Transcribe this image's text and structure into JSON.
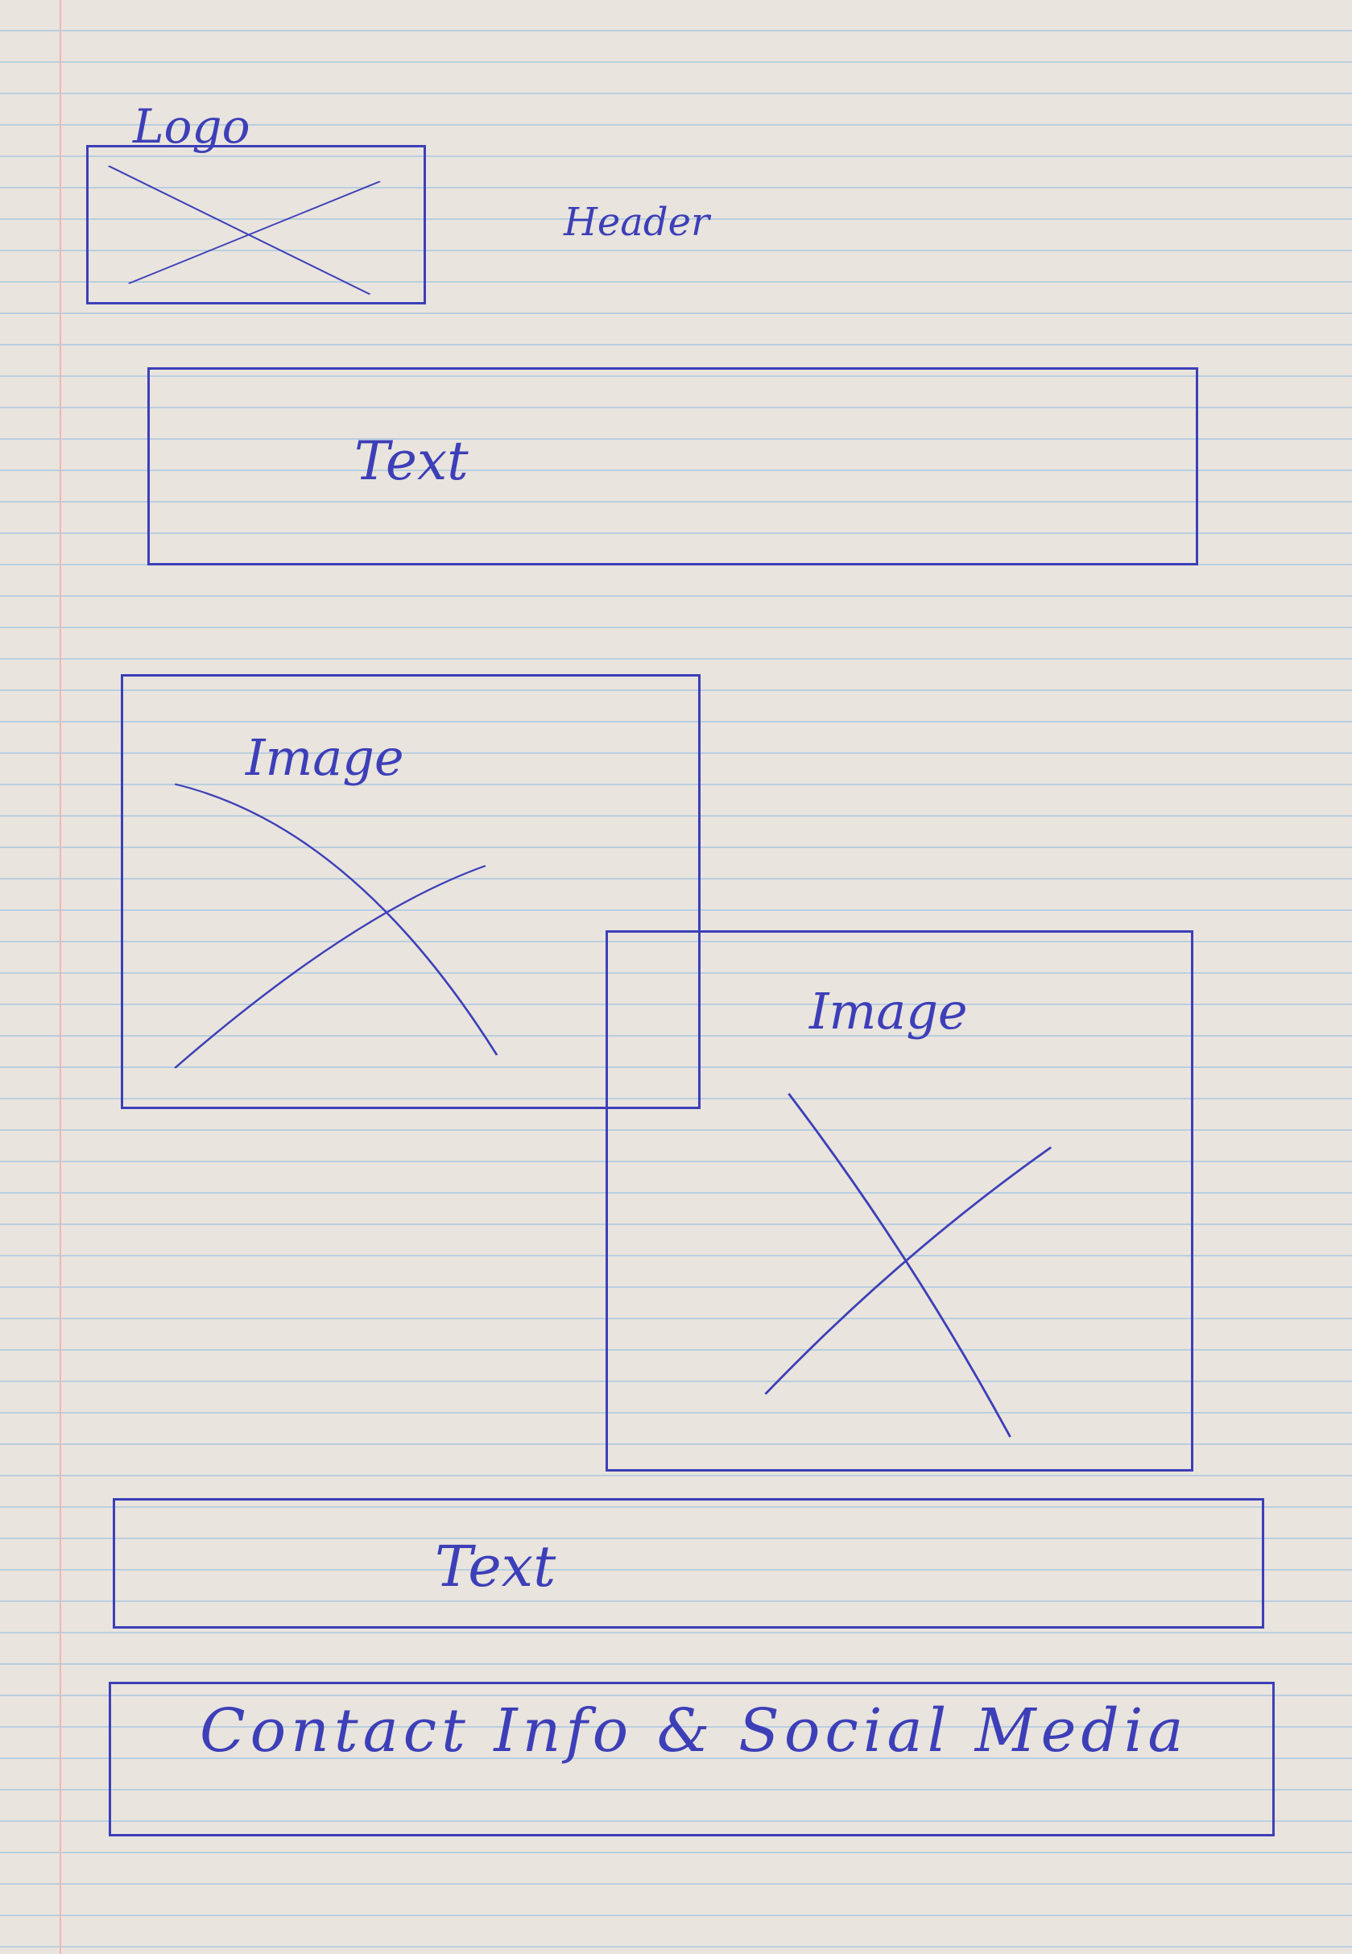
{
  "sketch": {
    "logo_label": "Logo",
    "header_label": "Header",
    "text_block_1_label": "Text",
    "image_1_label": "Image",
    "image_2_label": "Image",
    "text_block_2_label": "Text",
    "footer_label": "Contact Info & Social Media"
  },
  "colors": {
    "paper": "#e9e4dd",
    "ink": "#3d3fb8",
    "rule_lines": "#b9cfe0",
    "margin_line": "#efb5b5"
  }
}
